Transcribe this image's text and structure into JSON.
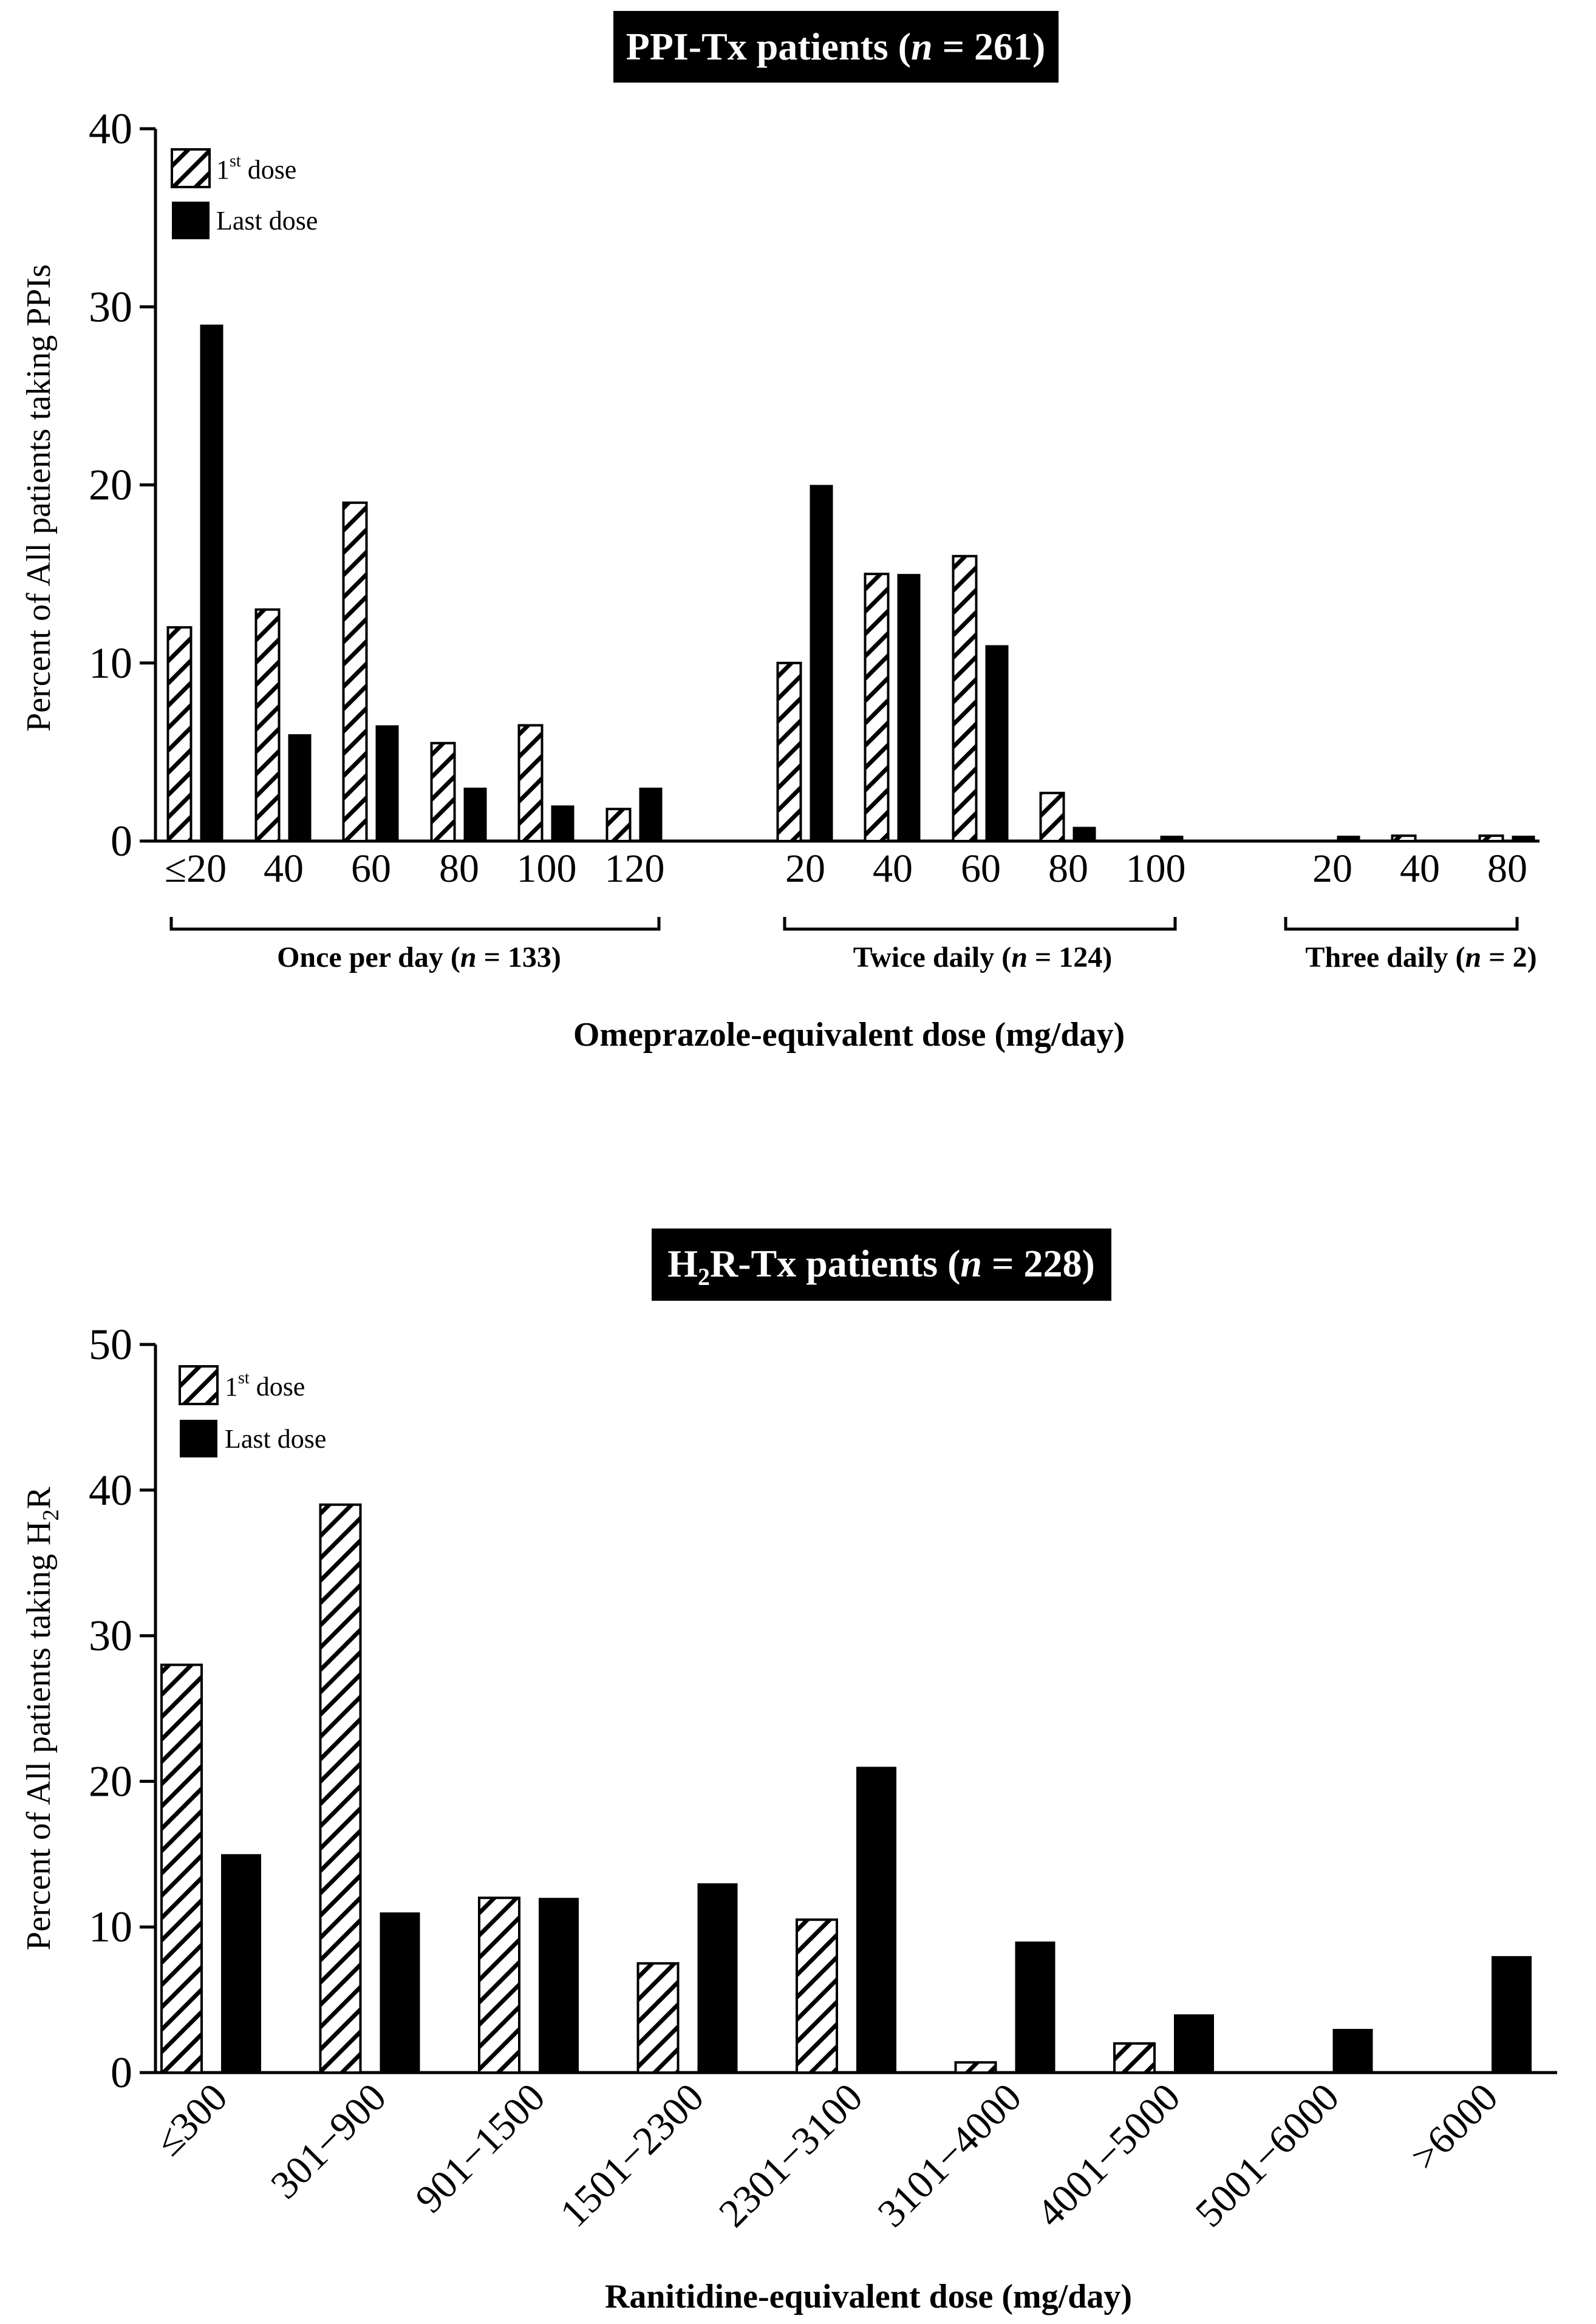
{
  "colors": {
    "ink": "#000000",
    "paper": "#ffffff"
  },
  "chart_data": [
    {
      "type": "bar",
      "title_parts": [
        "PPI-Tx patients (",
        "n",
        " = 261)"
      ],
      "ylabel": "Percent of All patients taking PPIs",
      "xlabel": "Omeprazole-equivalent dose (mg/day)",
      "ylim": [
        0,
        40
      ],
      "yticks": [
        "0",
        "10",
        "20",
        "30",
        "40"
      ],
      "legend": {
        "first": "1",
        "first_sup": "st",
        "first_suffix": " dose",
        "last": "Last dose",
        "position": "top-left"
      },
      "groups": [
        {
          "label_parts": [
            "Once per day (",
            "n",
            " = 133)"
          ],
          "categories": [
            "≤20",
            "40",
            "60",
            "80",
            "100",
            "120"
          ],
          "first_dose": [
            12,
            13,
            19,
            5.5,
            6.5,
            1.8
          ],
          "last_dose": [
            29,
            6,
            6.5,
            3,
            2,
            3
          ]
        },
        {
          "label_parts": [
            "Twice daily (",
            "n",
            " = 124)"
          ],
          "categories": [
            "20",
            "40",
            "60",
            "80",
            "100"
          ],
          "first_dose": [
            10,
            15,
            16,
            2.7,
            0
          ],
          "last_dose": [
            20,
            15,
            11,
            0.8,
            0.3
          ]
        },
        {
          "label_parts": [
            "Three daily (",
            "n",
            " = 2)"
          ],
          "categories": [
            "20",
            "40",
            "80"
          ],
          "first_dose": [
            0,
            0.3,
            0.3
          ],
          "last_dose": [
            0.3,
            0,
            0.3
          ]
        }
      ]
    },
    {
      "type": "bar",
      "title_parts": [
        "H",
        "2",
        "R-Tx patients (",
        "n",
        " = 228)"
      ],
      "ylabel_parts": [
        "Percent of All patients taking H",
        "2",
        "R"
      ],
      "xlabel": "Ranitidine-equivalent dose (mg/day)",
      "ylim": [
        0,
        50
      ],
      "yticks": [
        "0",
        "10",
        "20",
        "30",
        "40",
        "50"
      ],
      "legend": {
        "first": "1",
        "first_sup": "st",
        "first_suffix": " dose",
        "last": "Last dose",
        "position": "top-left"
      },
      "categories": [
        "≤300",
        "301−900",
        "901−1500",
        "1501−2300",
        "2301−3100",
        "3101−4000",
        "4001−5000",
        "5001−6000",
        ">6000"
      ],
      "first_dose": [
        28,
        39,
        12,
        7.5,
        10.5,
        0.7,
        2,
        0,
        0
      ],
      "last_dose": [
        15,
        11,
        12,
        13,
        21,
        9,
        4,
        3,
        8
      ]
    }
  ]
}
